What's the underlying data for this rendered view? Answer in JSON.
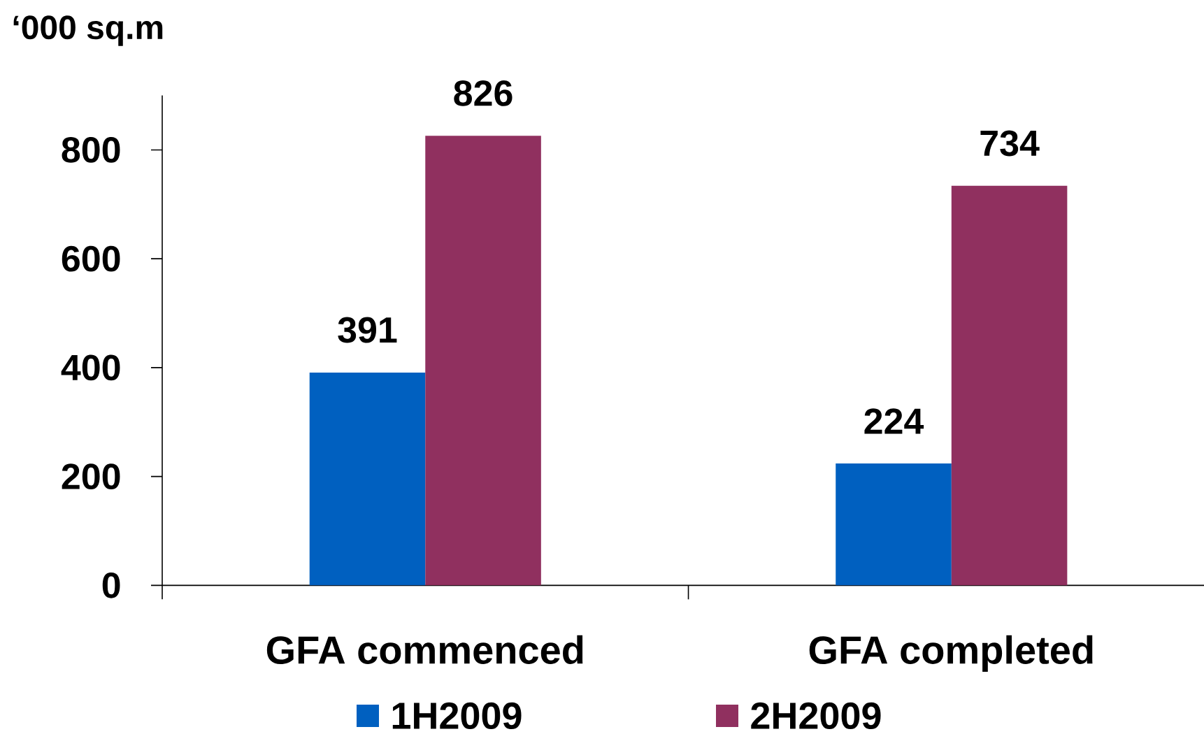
{
  "chart_data": {
    "type": "bar",
    "ylabel": "‘000 sq.m",
    "categories": [
      "GFA commenced",
      "GFA completed"
    ],
    "series": [
      {
        "name": "1H2009",
        "color": "#0060c0",
        "values": [
          391,
          224
        ]
      },
      {
        "name": "2H2009",
        "color": "#90305f",
        "values": [
          826,
          734
        ]
      }
    ],
    "ylim": [
      0,
      900
    ],
    "yticks": [
      0,
      200,
      400,
      600,
      800
    ],
    "data_labels": true,
    "legend": "bottom"
  }
}
